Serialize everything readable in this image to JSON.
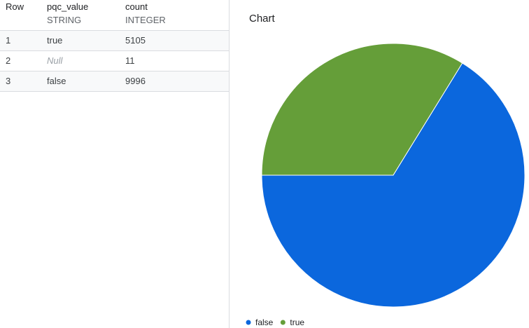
{
  "table": {
    "columns": [
      {
        "name": "Row"
      },
      {
        "name": "pqc_value",
        "type": "STRING"
      },
      {
        "name": "count",
        "type": "INTEGER"
      }
    ],
    "rows": [
      [
        "1",
        "true",
        5105
      ],
      [
        "2",
        "Null",
        11
      ],
      [
        "3",
        "false",
        9996
      ]
    ]
  },
  "chart_data": {
    "type": "pie",
    "title": "Chart",
    "categories": [
      "false",
      "true"
    ],
    "values": [
      9996,
      5105
    ],
    "colors": [
      "#0b67dd",
      "#659e39"
    ]
  }
}
